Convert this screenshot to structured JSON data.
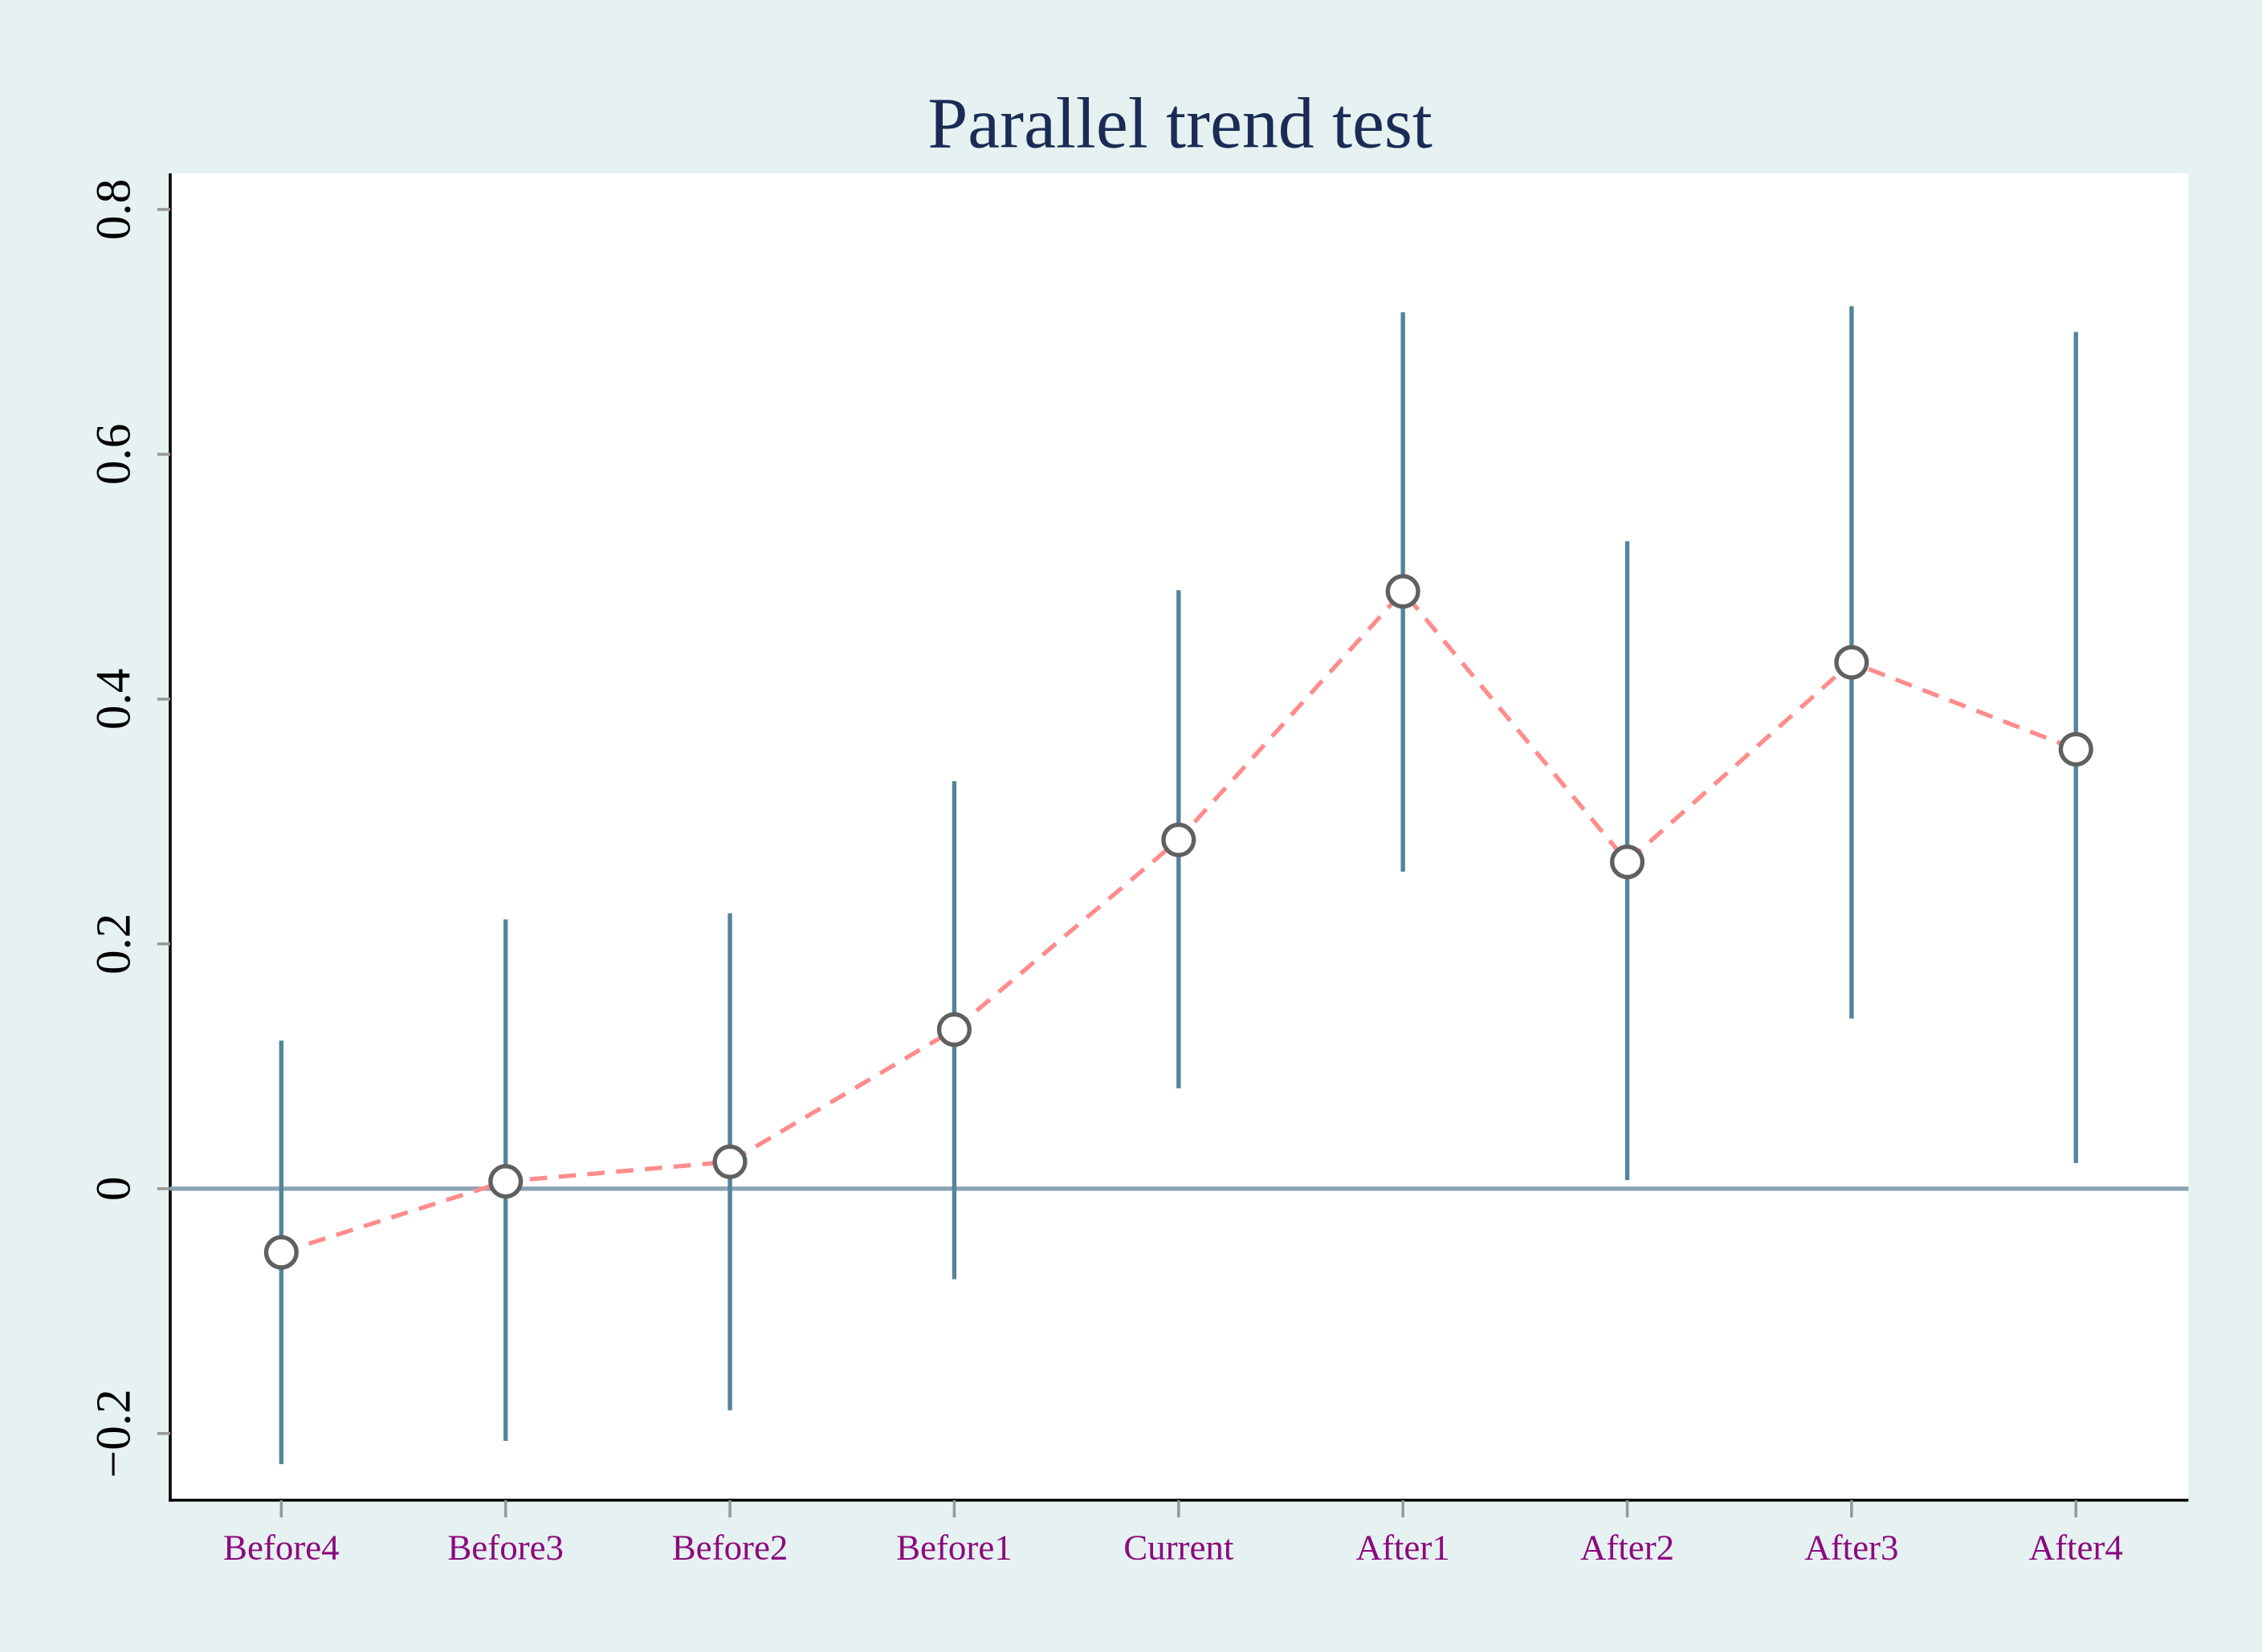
{
  "chart_data": {
    "type": "scatter",
    "title": "Parallel trend test",
    "xlabel": "",
    "ylabel": "",
    "categories": [
      "Before4",
      "Before3",
      "Before2",
      "Before1",
      "Current",
      "After1",
      "After2",
      "After3",
      "After4"
    ],
    "series": [
      {
        "values": [
          -0.052,
          0.006,
          0.022,
          0.13,
          0.285,
          0.488,
          0.267,
          0.43,
          0.359
        ],
        "ci_low": [
          -0.225,
          -0.206,
          -0.181,
          -0.074,
          0.082,
          0.259,
          0.007,
          0.139,
          0.021
        ],
        "ci_high": [
          0.121,
          0.22,
          0.225,
          0.333,
          0.489,
          0.716,
          0.529,
          0.721,
          0.7
        ]
      }
    ],
    "yticks": [
      "-0.2",
      "0",
      "0.2",
      "0.4",
      "0.6",
      "0.8"
    ],
    "ytick_values": [
      -0.2,
      0,
      0.2,
      0.4,
      0.6,
      0.8
    ],
    "ylim": [
      -0.256,
      0.832
    ],
    "reference_line_y": 0,
    "grid": false,
    "legend": "none",
    "colors": {
      "background": "#e6f1f1",
      "plot_background": "#ffffff",
      "title": "#1a2c55",
      "ci_bars": "#55849a",
      "connecting_line": "#ff8c8c",
      "marker_edge": "#606060",
      "reference_line": "#8aa4b6",
      "xtick_labels": "#8b0a7e"
    }
  }
}
